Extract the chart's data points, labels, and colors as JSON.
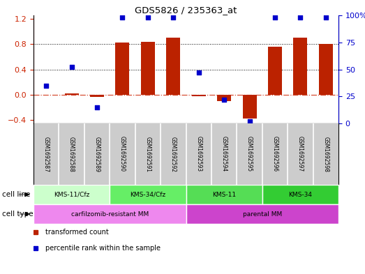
{
  "title": "GDS5826 / 235363_at",
  "samples": [
    "GSM1692587",
    "GSM1692588",
    "GSM1692589",
    "GSM1692590",
    "GSM1692591",
    "GSM1692592",
    "GSM1692593",
    "GSM1692594",
    "GSM1692595",
    "GSM1692596",
    "GSM1692597",
    "GSM1692598"
  ],
  "transformed_count": [
    0.0,
    0.02,
    -0.03,
    0.82,
    0.83,
    0.9,
    -0.02,
    -0.1,
    -0.37,
    0.76,
    0.9,
    0.8
  ],
  "percentile_values": [
    35,
    52,
    15,
    98,
    98,
    98,
    47,
    22,
    2,
    98,
    98,
    98
  ],
  "bar_color": "#bb2200",
  "dot_color": "#0000cc",
  "ylim_left": [
    -0.45,
    1.25
  ],
  "ylim_right": [
    0,
    100
  ],
  "yticks_left": [
    -0.4,
    0.0,
    0.4,
    0.8,
    1.2
  ],
  "yticks_right": [
    0,
    25,
    50,
    75,
    100
  ],
  "left_axis_color": "#cc2200",
  "right_axis_color": "#0000cc",
  "cell_line_groups": [
    {
      "label": "KMS-11/Cfz",
      "start": 0,
      "end": 3,
      "color": "#ccffcc"
    },
    {
      "label": "KMS-34/Cfz",
      "start": 3,
      "end": 6,
      "color": "#66ee66"
    },
    {
      "label": "KMS-11",
      "start": 6,
      "end": 9,
      "color": "#55dd55"
    },
    {
      "label": "KMS-34",
      "start": 9,
      "end": 12,
      "color": "#33cc33"
    }
  ],
  "cell_type_groups": [
    {
      "label": "carfilzomib-resistant MM",
      "start": 0,
      "end": 6,
      "color": "#ee88ee"
    },
    {
      "label": "parental MM",
      "start": 6,
      "end": 12,
      "color": "#cc44cc"
    }
  ],
  "cell_line_label": "cell line",
  "cell_type_label": "cell type",
  "legend_items": [
    {
      "label": "transformed count",
      "color": "#bb2200"
    },
    {
      "label": "percentile rank within the sample",
      "color": "#0000cc"
    }
  ],
  "background_color": "#ffffff",
  "sample_box_color": "#cccccc",
  "sample_box_border": "#888888"
}
